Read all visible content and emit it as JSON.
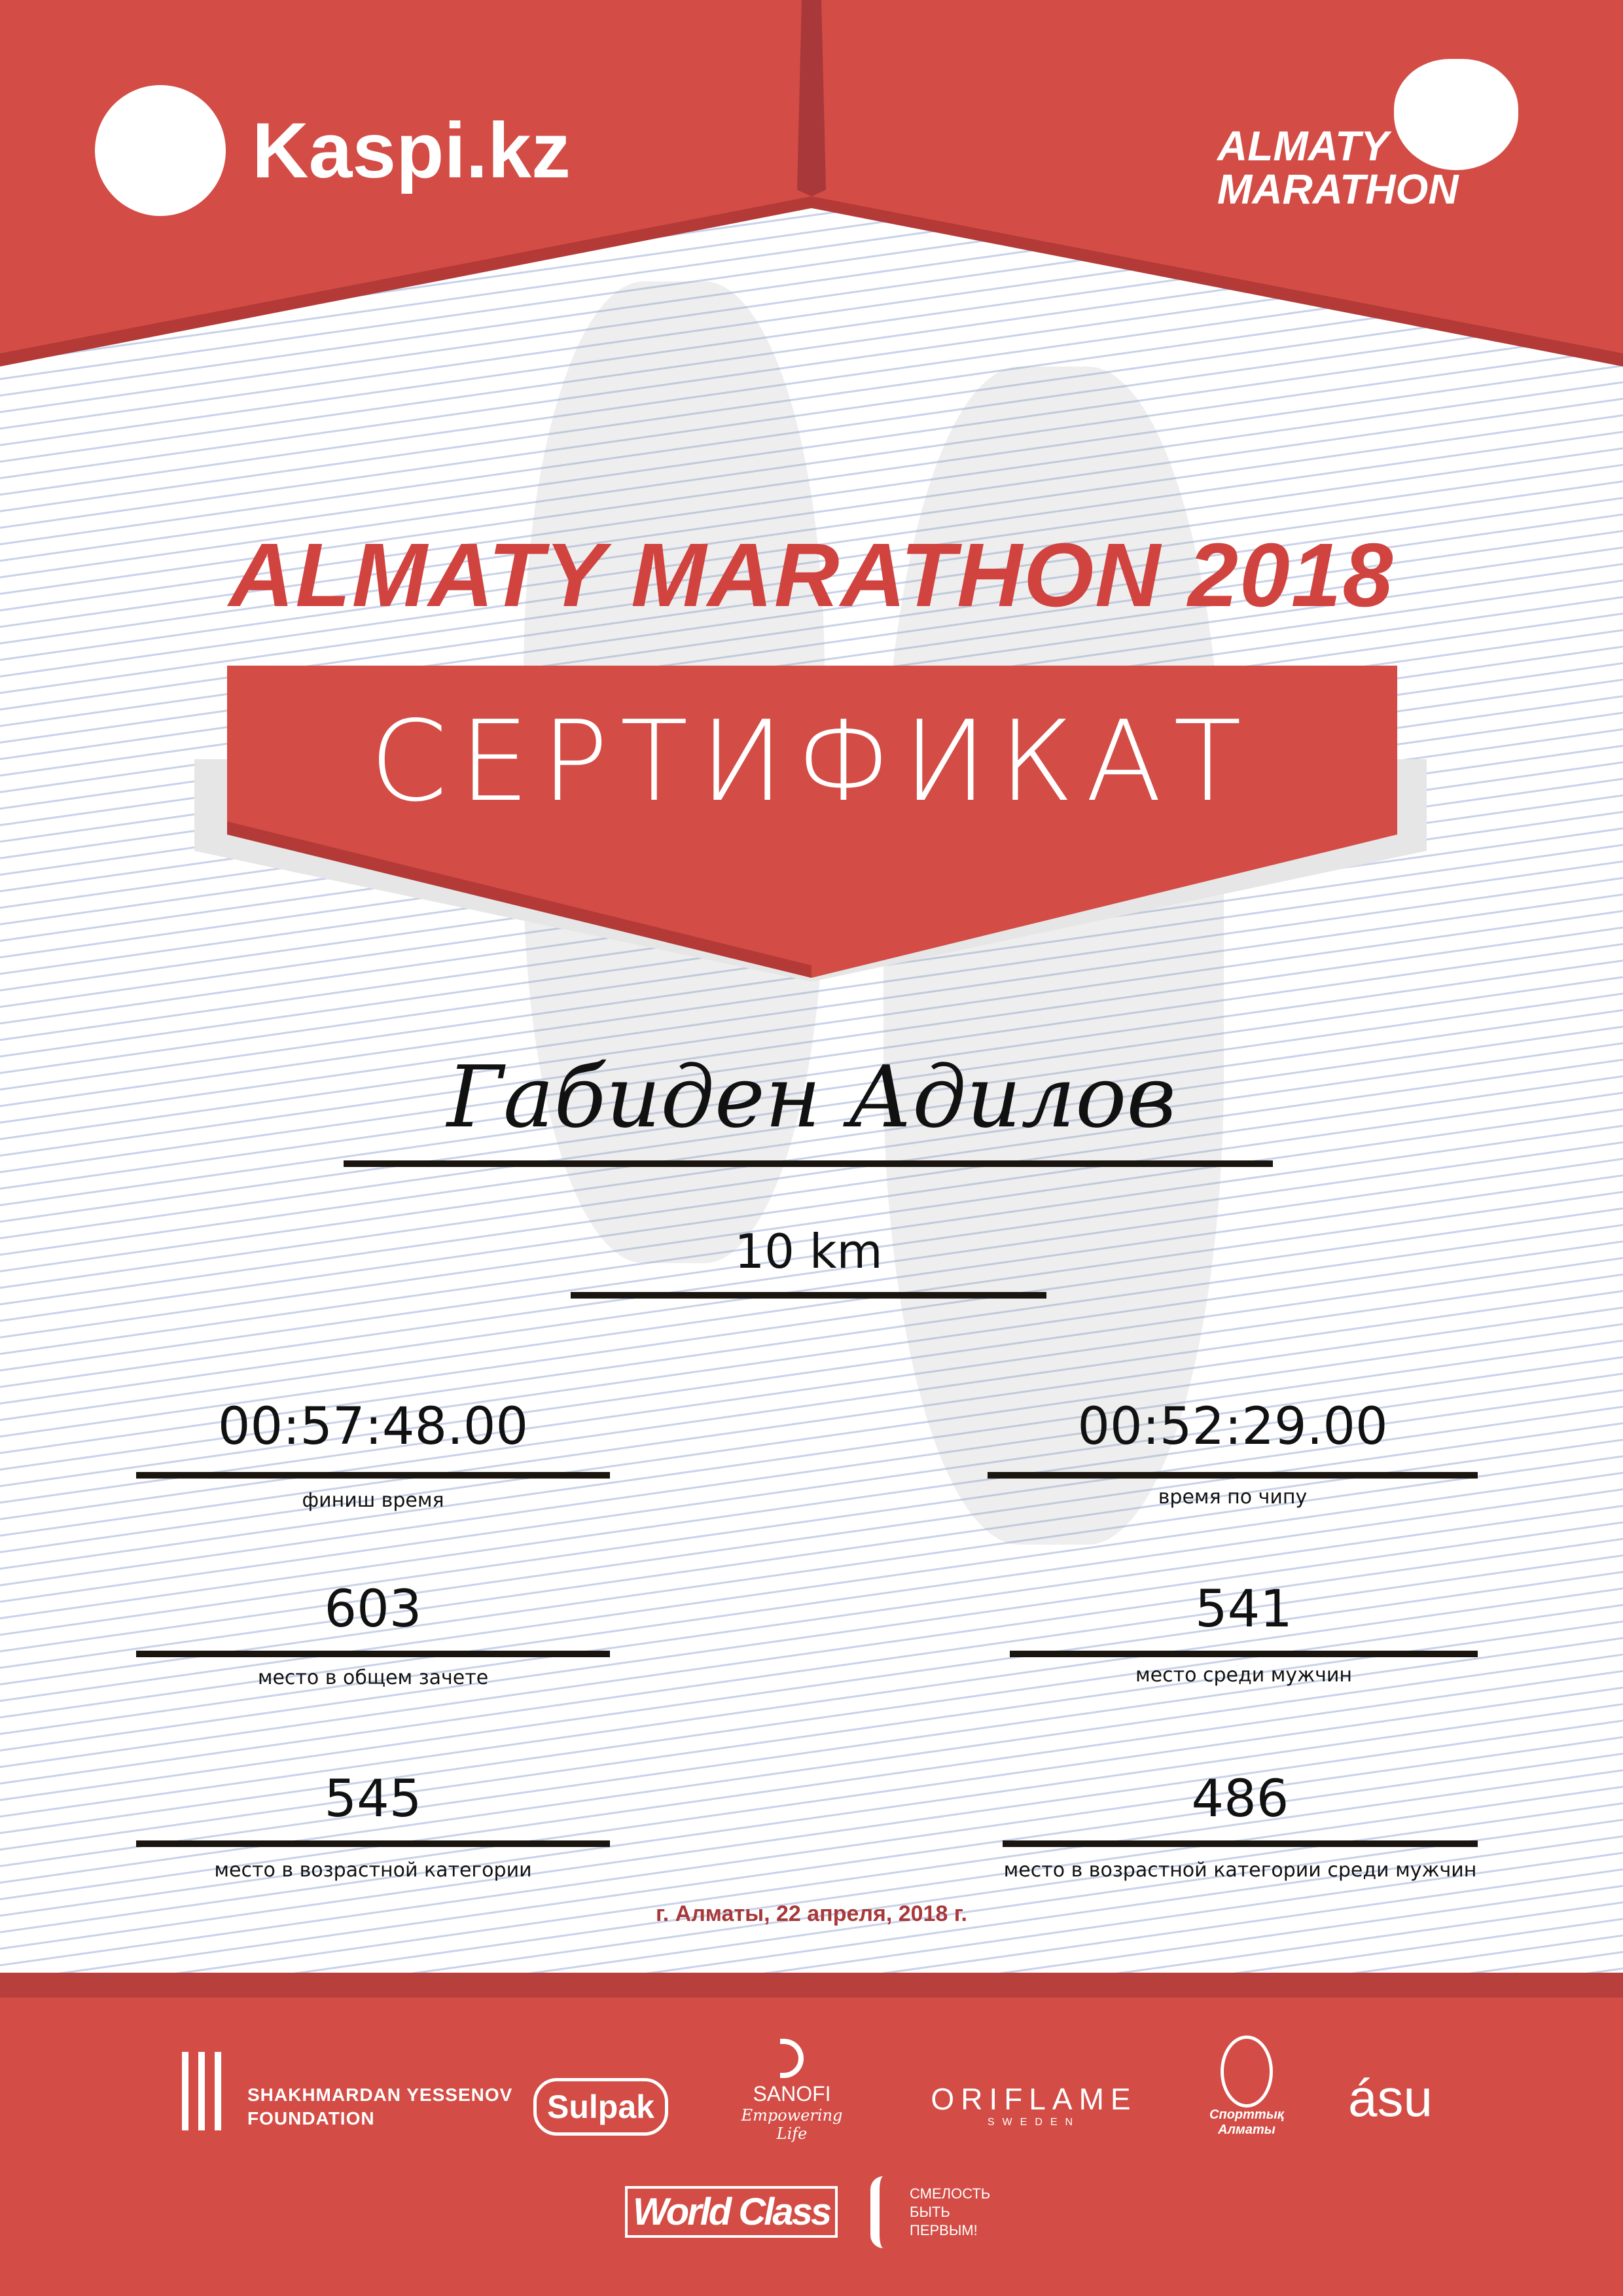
{
  "header": {
    "kaspi_logo": "Kaspi.kz",
    "event_logo": [
      "ALMATY",
      "MARATHON"
    ]
  },
  "title": "ALMATY MARATHON 2018",
  "certificate_label": "СЕРТИФИКАТ",
  "participant_name": "Габиден Адилов",
  "distance": "10 km",
  "stats": {
    "finish_time": {
      "value": "00:57:48.00",
      "label": "финиш время"
    },
    "chip_time": {
      "value": "00:52:29.00",
      "label": "время по чипу"
    },
    "overall_place": {
      "value": "603",
      "label": "место в общем зачете"
    },
    "male_place": {
      "value": "541",
      "label": "место среди мужчин"
    },
    "age_place": {
      "value": "545",
      "label": "место в возрастной категории"
    },
    "age_male_place": {
      "value": "486",
      "label": "место в возрастной категории среди мужчин"
    }
  },
  "date_line": "г. Алматы, 22 апреля, 2018 г.",
  "sponsors": {
    "yessenov": [
      "SHAKHMARDAN YESSENOV",
      "FOUNDATION"
    ],
    "sulpak": "Sulpak",
    "sanofi": [
      "SANOFI",
      "Empowering Life"
    ],
    "oriflame": [
      "ORIFLAME",
      "SWEDEN"
    ],
    "sport_almaty": [
      "Спорттық",
      "Алматы"
    ],
    "asu": "ásu",
    "worldclass": "World Class",
    "fund": [
      "СМЕЛОСТЬ",
      "БЫТЬ",
      "ПЕРВЫМ!"
    ]
  },
  "colors": {
    "brand_red": "#d34c45",
    "dark_red": "#a8383a",
    "stripe_blue": "#c9d2ea"
  }
}
